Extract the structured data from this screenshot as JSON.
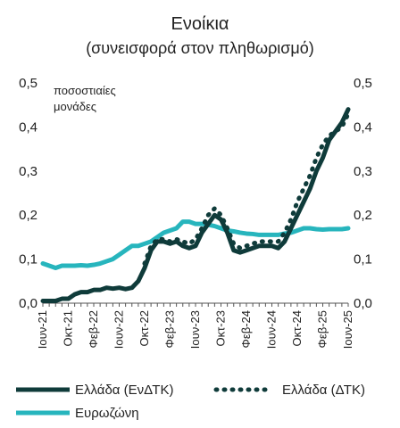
{
  "chart_data": {
    "type": "line",
    "title": "Ενοίκια",
    "subtitle": "(συνεισφορά στον πληθωρισμό)",
    "unit_note_line1": "ποσοστιαίες",
    "unit_note_line2": "μονάδες",
    "ylim": [
      0,
      0.5
    ],
    "y_ticks": [
      "0,0",
      "0,1",
      "0,2",
      "0,3",
      "0,4",
      "0,5"
    ],
    "y_ticks_right": [
      "0,0",
      "0,1",
      "0,2",
      "0,3",
      "0,4",
      "0,5"
    ],
    "x_tick_labels": [
      "Ιουν-21",
      "Οκτ-21",
      "Φεβ-22",
      "Ιουν-22",
      "Οκτ-22",
      "Φεβ-23",
      "Ιουν-23",
      "Οκτ-23",
      "Φεβ-24",
      "Ιουν-24",
      "Οκτ-24",
      "Φεβ-25",
      "Ιουν-25"
    ],
    "x": [
      "2021-06",
      "2021-07",
      "2021-08",
      "2021-09",
      "2021-10",
      "2021-11",
      "2021-12",
      "2022-01",
      "2022-02",
      "2022-03",
      "2022-04",
      "2022-05",
      "2022-06",
      "2022-07",
      "2022-08",
      "2022-09",
      "2022-10",
      "2022-11",
      "2022-12",
      "2023-01",
      "2023-02",
      "2023-03",
      "2023-04",
      "2023-05",
      "2023-06",
      "2023-07",
      "2023-08",
      "2023-09",
      "2023-10",
      "2023-11",
      "2023-12",
      "2024-01",
      "2024-02",
      "2024-03",
      "2024-04",
      "2024-05",
      "2024-06",
      "2024-07",
      "2024-08",
      "2024-09",
      "2024-10",
      "2024-11",
      "2024-12",
      "2025-01",
      "2025-02",
      "2025-03",
      "2025-04",
      "2025-05",
      "2025-06"
    ],
    "series": [
      {
        "name": "Ελλάδα (ΕνΔΤΚ)",
        "style": "solid",
        "color": "#0f3b3a",
        "values": [
          0.005,
          0.005,
          0.005,
          0.01,
          0.01,
          0.02,
          0.025,
          0.025,
          0.03,
          0.03,
          0.035,
          0.033,
          0.035,
          0.032,
          0.035,
          0.05,
          0.08,
          0.12,
          0.14,
          0.14,
          0.135,
          0.14,
          0.13,
          0.125,
          0.13,
          0.16,
          0.18,
          0.2,
          0.19,
          0.16,
          0.12,
          0.115,
          0.12,
          0.125,
          0.13,
          0.13,
          0.13,
          0.125,
          0.14,
          0.17,
          0.2,
          0.23,
          0.26,
          0.3,
          0.33,
          0.37,
          0.39,
          0.41,
          0.44
        ]
      },
      {
        "name": "Ελλάδα (ΔΤΚ)",
        "style": "dotted",
        "color": "#0f3b3a",
        "values": [
          null,
          null,
          null,
          null,
          null,
          null,
          null,
          null,
          null,
          null,
          null,
          null,
          null,
          null,
          null,
          null,
          0.09,
          0.13,
          0.145,
          0.145,
          0.14,
          0.145,
          0.14,
          0.135,
          0.145,
          0.17,
          0.2,
          0.215,
          0.2,
          0.17,
          0.135,
          0.125,
          0.13,
          0.135,
          0.14,
          0.14,
          0.14,
          0.14,
          0.16,
          0.19,
          0.23,
          0.26,
          0.29,
          0.33,
          0.36,
          0.38,
          0.39,
          0.4,
          0.43
        ]
      },
      {
        "name": "Ευρωζώνη",
        "style": "solid",
        "color": "#27b5bd",
        "values": [
          0.09,
          0.085,
          0.08,
          0.085,
          0.085,
          0.085,
          0.086,
          0.085,
          0.087,
          0.09,
          0.095,
          0.1,
          0.11,
          0.12,
          0.13,
          0.13,
          0.135,
          0.14,
          0.15,
          0.16,
          0.165,
          0.17,
          0.185,
          0.185,
          0.18,
          0.18,
          0.178,
          0.175,
          0.17,
          0.165,
          0.163,
          0.16,
          0.158,
          0.157,
          0.155,
          0.155,
          0.155,
          0.155,
          0.158,
          0.16,
          0.165,
          0.17,
          0.17,
          0.168,
          0.167,
          0.168,
          0.168,
          0.168,
          0.17
        ]
      }
    ]
  }
}
